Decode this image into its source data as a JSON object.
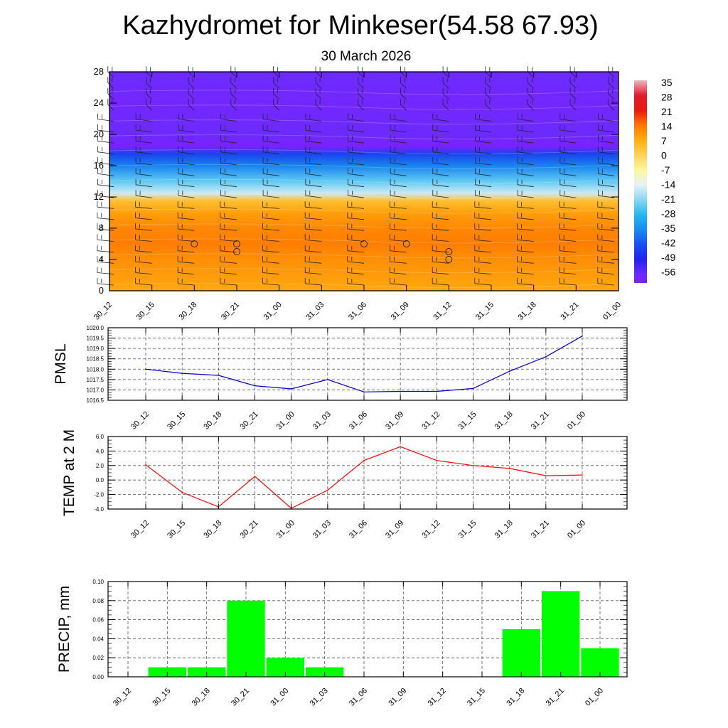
{
  "title": "Kazhydromet for Minkeser(54.58 67.93)",
  "subtitle": "30 March 2026",
  "time_labels": [
    "30_12",
    "30_15",
    "30_18",
    "30_21",
    "31_00",
    "31_03",
    "31_06",
    "31_09",
    "31_12",
    "31_15",
    "31_18",
    "31_21",
    "01_00"
  ],
  "chart_data": [
    {
      "type": "heatmap",
      "title": "Kazhydromet for Minkeser(54.58 67.93)",
      "subtitle": "30 March 2026",
      "x": [
        "30_12",
        "30_15",
        "30_18",
        "30_21",
        "31_00",
        "31_03",
        "31_06",
        "31_09",
        "31_12",
        "31_15",
        "31_18",
        "31_21",
        "01_00"
      ],
      "yticks": [
        0,
        4,
        8,
        12,
        16,
        20,
        24,
        28
      ],
      "ylim": [
        0,
        28
      ],
      "colorbar_labels": [
        "35",
        "28",
        "21",
        "14",
        "7",
        "0",
        "-7",
        "-14",
        "-21",
        "-28",
        "-35",
        "-42",
        "-49",
        "-56"
      ],
      "levels": [
        {
          "y": 0,
          "value": 8
        },
        {
          "y": 4,
          "value": 11
        },
        {
          "y": 6,
          "value": 13
        },
        {
          "y": 8,
          "value": 12
        },
        {
          "y": 10,
          "value": 9
        },
        {
          "y": 11.5,
          "value": 4
        },
        {
          "y": 12.5,
          "value": -16
        },
        {
          "y": 14,
          "value": -24
        },
        {
          "y": 16,
          "value": -36
        },
        {
          "y": 17.5,
          "value": -44
        },
        {
          "y": 18.5,
          "value": -60
        },
        {
          "y": 20,
          "value": -56
        },
        {
          "y": 24,
          "value": -58
        },
        {
          "y": 28,
          "value": -56
        }
      ],
      "circle_markers": [
        {
          "x": "30_18",
          "y": 6
        },
        {
          "x": "30_21",
          "y": 6
        },
        {
          "x": "30_21",
          "y": 5
        },
        {
          "x": "31_06",
          "y": 6
        },
        {
          "x": "31_09",
          "y": 6
        },
        {
          "x": "31_12",
          "y": 5
        },
        {
          "x": "31_12",
          "y": 4
        }
      ],
      "grid": false
    },
    {
      "type": "line",
      "ylabel": "PMSL",
      "x": [
        "30_12",
        "30_15",
        "30_18",
        "30_21",
        "31_00",
        "31_03",
        "31_06",
        "31_09",
        "31_12",
        "31_15",
        "31_18",
        "31_21",
        "01_00"
      ],
      "series": [
        {
          "values": [
            1018.0,
            1017.8,
            1017.7,
            1017.2,
            1017.05,
            1017.5,
            1016.9,
            1016.93,
            1016.93,
            1017.07,
            1017.9,
            1018.6,
            1019.6
          ],
          "color": "#0000cc"
        }
      ],
      "ylim": [
        1016.5,
        1020.0
      ],
      "yticks": [
        "1016.5",
        "1017.0",
        "1017.5",
        "1018.0",
        "1018.5",
        "1019.0",
        "1019.5",
        "1020.0"
      ],
      "grid": true
    },
    {
      "type": "line",
      "ylabel": "TEMP at 2 M",
      "x": [
        "30_12",
        "30_15",
        "30_18",
        "30_21",
        "31_00",
        "31_03",
        "31_06",
        "31_09",
        "31_12",
        "31_15",
        "31_18",
        "31_21",
        "01_00"
      ],
      "series": [
        {
          "values": [
            2.1,
            -1.7,
            -3.7,
            0.5,
            -3.9,
            -1.4,
            2.7,
            4.6,
            2.7,
            2.0,
            1.6,
            0.6,
            0.7
          ],
          "color": "#ff0000"
        }
      ],
      "ylim": [
        -4.0,
        6.0
      ],
      "yticks": [
        "-4.0",
        "-2.0",
        "0.0",
        "2.0",
        "4.0",
        "6.0"
      ],
      "grid": true
    },
    {
      "type": "bar",
      "ylabel": "PRECIP, mm",
      "categories": [
        "30_12",
        "30_15",
        "30_18",
        "30_21",
        "31_00",
        "31_03",
        "31_06",
        "31_09",
        "31_12",
        "31_15",
        "31_18",
        "31_21",
        "01_00"
      ],
      "values": [
        0,
        0.01,
        0.01,
        0.08,
        0.02,
        0.01,
        0,
        0,
        0,
        0,
        0.05,
        0.09,
        0.03
      ],
      "ylim": [
        0,
        0.1
      ],
      "yticks": [
        "0.00",
        "0.02",
        "0.04",
        "0.06",
        "0.08",
        "0.10"
      ],
      "bar_color": "#00ff00",
      "grid": true
    }
  ]
}
